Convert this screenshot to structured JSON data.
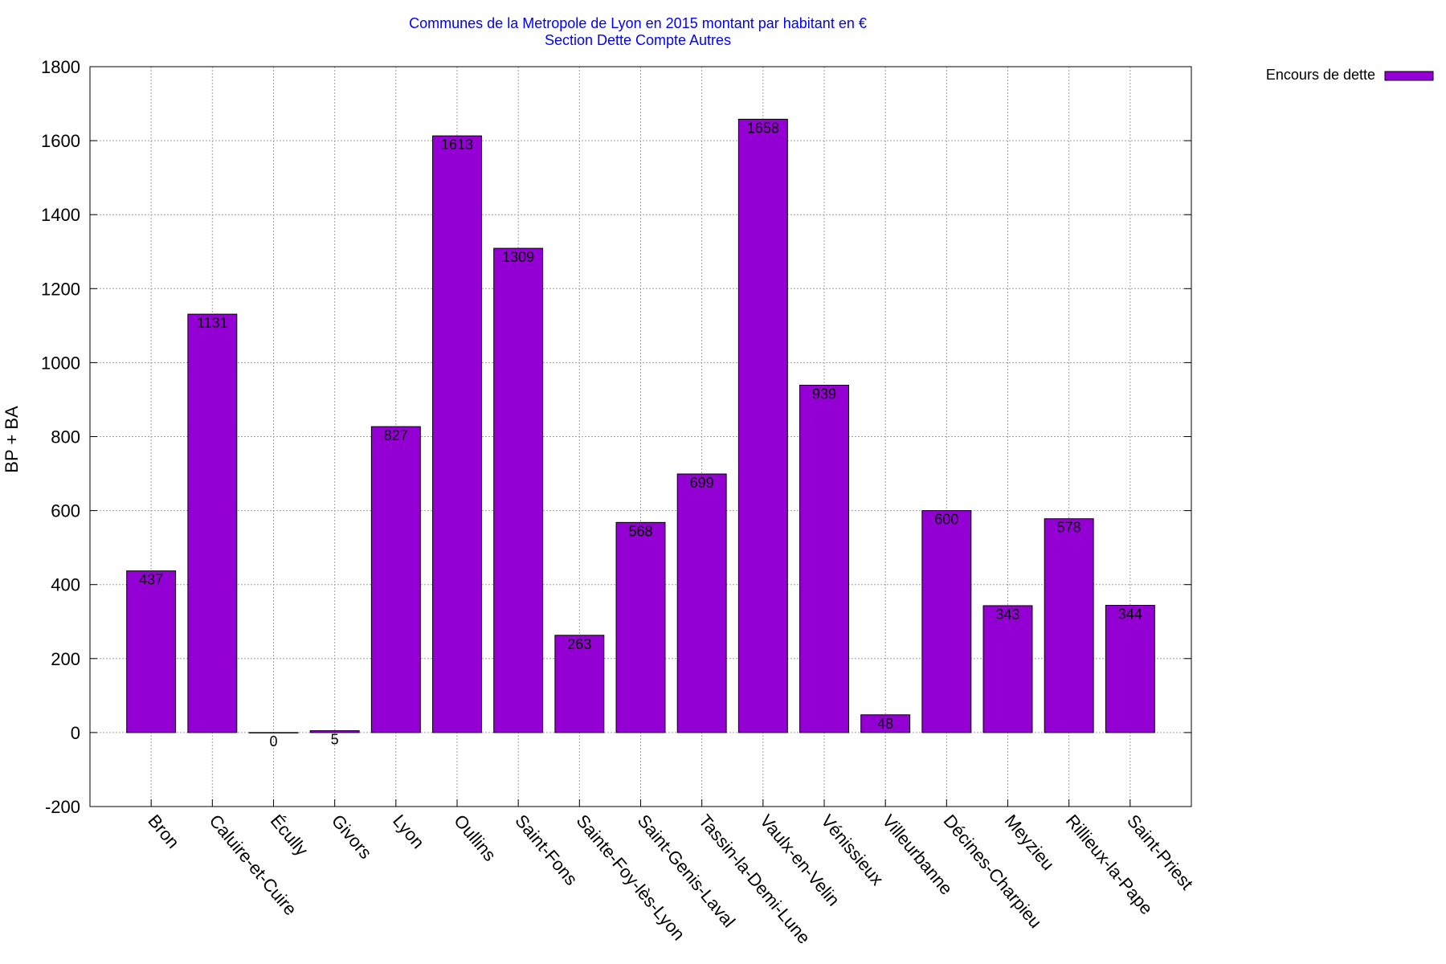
{
  "chart_data": {
    "type": "bar",
    "title": "Communes de la Metropole de Lyon en 2015 montant par habitant en €",
    "subtitle": "Section Dette Compte Autres",
    "xlabel": "",
    "ylabel": "BP + BA",
    "ylim": [
      -200,
      1800
    ],
    "yticks": [
      -200,
      0,
      200,
      400,
      600,
      800,
      1000,
      1200,
      1400,
      1600,
      1800
    ],
    "grid": true,
    "legend_position": "top-right, outside",
    "categories": [
      "Bron",
      "Caluire-et-Cuire",
      "Écully",
      "Givors",
      "Lyon",
      "Oullins",
      "Saint-Fons",
      "Sainte-Foy-lès-Lyon",
      "Saint-Genis-Laval",
      "Tassin-la-Demi-Lune",
      "Vaulx-en-Velin",
      "Vénissieux",
      "Villeurbanne",
      "Décines-Charpieu",
      "Meyzieu",
      "Rillieux-la-Pape",
      "Saint-Priest"
    ],
    "series": [
      {
        "name": "Encours de dette",
        "color": "#9400d3",
        "values": [
          437,
          1131,
          0,
          5,
          827,
          1613,
          1309,
          263,
          568,
          699,
          1658,
          939,
          48,
          600,
          343,
          578,
          344
        ]
      }
    ]
  }
}
